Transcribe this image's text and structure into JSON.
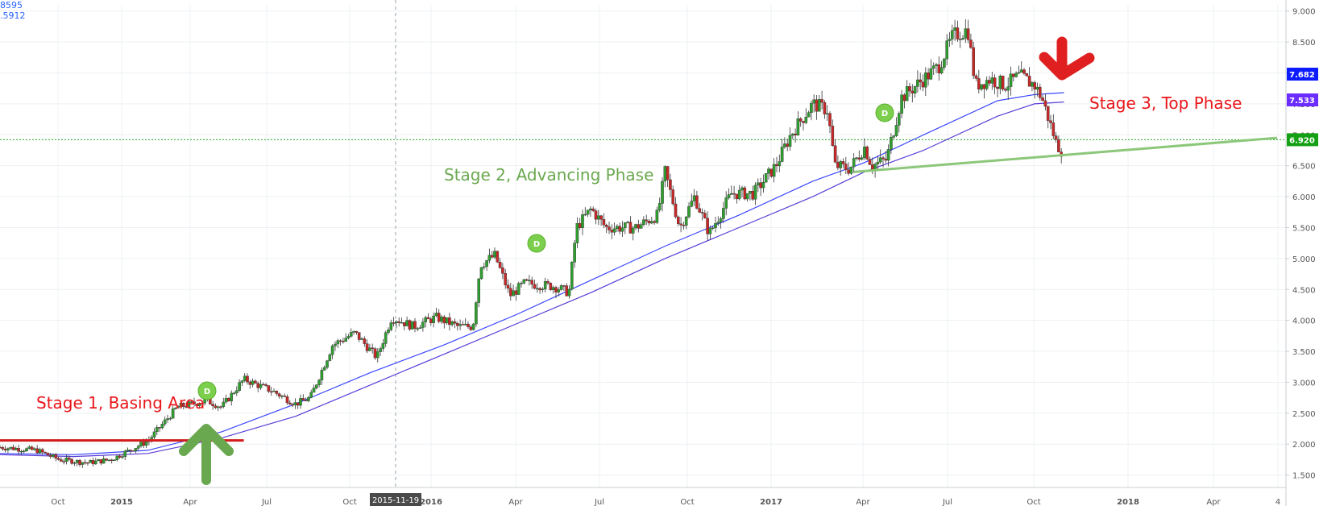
{
  "chart_data": {
    "type": "candlestick",
    "legend_values": [
      "8595",
      ".5912"
    ],
    "x_ticks": [
      "Oct",
      "2015",
      "Apr",
      "Jul",
      "Oct",
      "2016",
      "Apr",
      "Jul",
      "Oct",
      "2017",
      "Apr",
      "Jul",
      "Oct",
      "2018",
      "Apr",
      "4"
    ],
    "cursor_date": "2015-11-19",
    "y_ticks": [
      "9.000",
      "8.500",
      "8.000",
      "7.500",
      "7.000",
      "6.500",
      "6.000",
      "5.500",
      "5.000",
      "4.500",
      "4.000",
      "3.500",
      "3.000",
      "2.500",
      "2.000",
      "1.500"
    ],
    "ylim": [
      1.3,
      9.1
    ],
    "price_labels": [
      {
        "value": "7.682",
        "color": "#0d1cff"
      },
      {
        "value": "7.533",
        "color": "#6a2cff"
      },
      {
        "value": "6.920",
        "color": "#14a014"
      }
    ],
    "horizontal_level": 6.92,
    "price_path": [
      [
        0,
        1.95
      ],
      [
        5,
        1.9
      ],
      [
        8,
        1.75
      ],
      [
        12,
        1.7
      ],
      [
        15,
        1.75
      ],
      [
        20,
        2.05
      ],
      [
        24,
        2.6
      ],
      [
        28,
        2.7
      ],
      [
        30,
        2.6
      ],
      [
        33,
        3.05
      ],
      [
        37,
        2.85
      ],
      [
        40,
        2.65
      ],
      [
        42,
        2.75
      ],
      [
        45,
        3.6
      ],
      [
        48,
        3.8
      ],
      [
        51,
        3.4
      ],
      [
        53,
        4.05
      ],
      [
        56,
        3.9
      ],
      [
        59,
        4.05
      ],
      [
        62,
        3.9
      ],
      [
        64,
        3.9
      ],
      [
        65,
        4.9
      ],
      [
        67,
        5.05
      ],
      [
        69,
        4.4
      ],
      [
        71,
        4.6
      ],
      [
        75,
        4.55
      ],
      [
        77,
        4.45
      ],
      [
        78,
        5.5
      ],
      [
        80,
        5.8
      ],
      [
        82,
        5.5
      ],
      [
        86,
        5.5
      ],
      [
        89,
        5.7
      ],
      [
        90,
        6.4
      ],
      [
        92,
        5.5
      ],
      [
        94,
        6.0
      ],
      [
        96,
        5.4
      ],
      [
        99,
        6.05
      ],
      [
        102,
        6.05
      ],
      [
        105,
        6.5
      ],
      [
        107,
        7.0
      ],
      [
        110,
        7.5
      ],
      [
        112,
        7.4
      ],
      [
        113,
        6.5
      ],
      [
        115,
        6.45
      ],
      [
        117,
        6.8
      ],
      [
        118,
        6.5
      ],
      [
        120,
        6.6
      ],
      [
        122,
        7.6
      ],
      [
        124,
        7.8
      ],
      [
        127,
        8.1
      ],
      [
        129,
        8.6
      ],
      [
        131,
        8.7
      ],
      [
        132,
        7.8
      ],
      [
        134,
        7.9
      ],
      [
        136,
        7.8
      ],
      [
        138,
        7.95
      ],
      [
        140,
        7.8
      ],
      [
        141,
        7.6
      ],
      [
        143,
        6.85
      ],
      [
        144,
        6.7
      ]
    ],
    "ma1_path": [
      [
        0,
        1.85
      ],
      [
        10,
        1.83
      ],
      [
        20,
        1.9
      ],
      [
        30,
        2.2
      ],
      [
        40,
        2.65
      ],
      [
        50,
        3.15
      ],
      [
        60,
        3.6
      ],
      [
        70,
        4.1
      ],
      [
        80,
        4.65
      ],
      [
        90,
        5.2
      ],
      [
        100,
        5.7
      ],
      [
        110,
        6.25
      ],
      [
        117,
        6.55
      ],
      [
        125,
        7.0
      ],
      [
        135,
        7.55
      ],
      [
        140,
        7.65
      ],
      [
        144,
        7.68
      ]
    ],
    "ma2_path": [
      [
        0,
        1.83
      ],
      [
        10,
        1.8
      ],
      [
        20,
        1.85
      ],
      [
        30,
        2.1
      ],
      [
        40,
        2.45
      ],
      [
        50,
        2.95
      ],
      [
        60,
        3.45
      ],
      [
        70,
        3.95
      ],
      [
        80,
        4.45
      ],
      [
        90,
        5.0
      ],
      [
        100,
        5.5
      ],
      [
        110,
        6.0
      ],
      [
        117,
        6.4
      ],
      [
        125,
        6.75
      ],
      [
        135,
        7.3
      ],
      [
        140,
        7.5
      ],
      [
        144,
        7.53
      ]
    ],
    "support_line": {
      "from": [
        113,
        6.4
      ],
      "to": [
        185,
        6.95
      ]
    },
    "resistance_line": {
      "from": [
        0,
        2.06
      ],
      "to": [
        33,
        2.06
      ]
    },
    "annotations": [
      {
        "text": "Stage 1, Basing Area",
        "color": "#e8161b"
      },
      {
        "text": "Stage 2, Advancing Phase",
        "color": "#6aa84f"
      },
      {
        "text": "Stage 3, Top Phase",
        "color": "#e8161b"
      }
    ],
    "dividend_badges": [
      {
        "label": "D",
        "x": 27,
        "y": 2.75
      },
      {
        "label": "D",
        "x": 70,
        "y": 5.15
      },
      {
        "label": "D",
        "x": 117,
        "y": 7.25
      }
    ]
  }
}
